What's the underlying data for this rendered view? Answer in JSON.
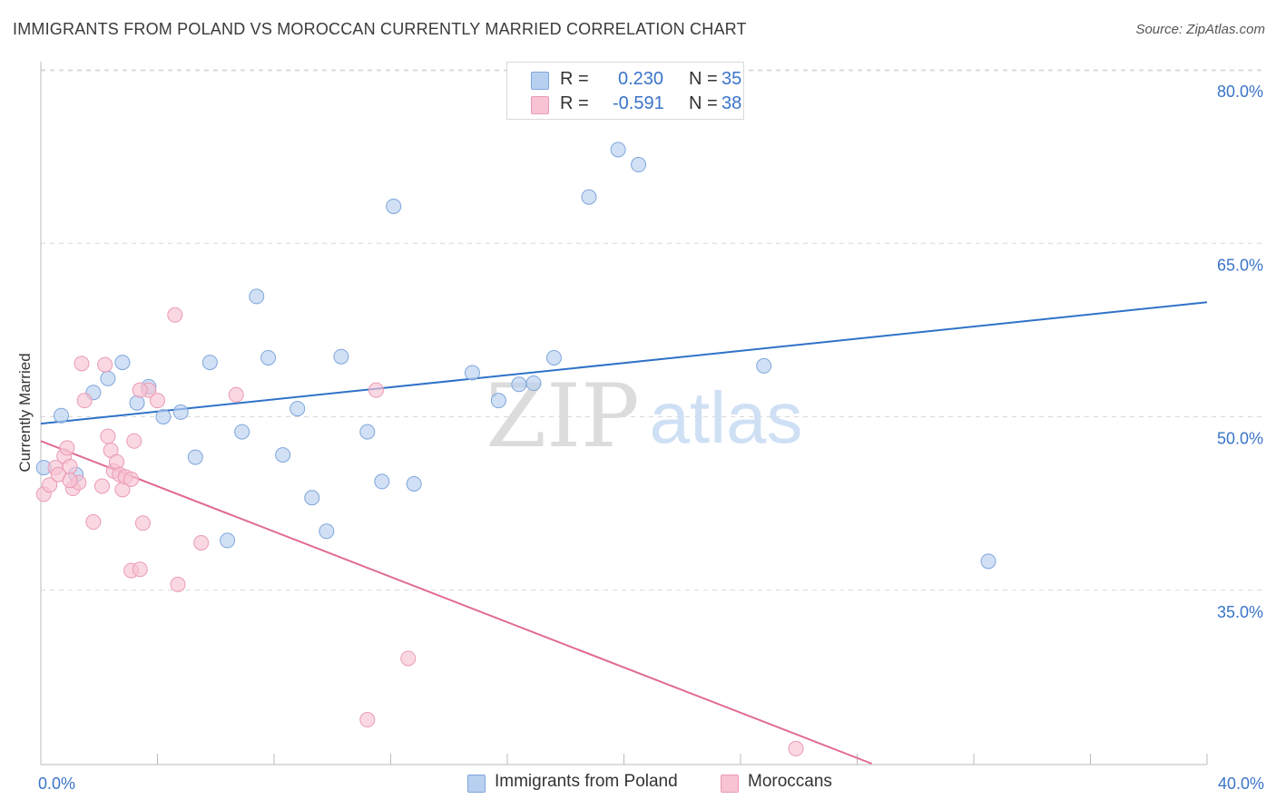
{
  "title": "IMMIGRANTS FROM POLAND VS MOROCCAN CURRENTLY MARRIED CORRELATION CHART",
  "source": "Source: ZipAtlas.com",
  "watermark": {
    "zip": "ZIP",
    "atlas": "atlas"
  },
  "legend_stats": [
    {
      "r_label": "R =",
      "r_value": "0.230",
      "n_label": "N =",
      "n_value": "35"
    },
    {
      "r_label": "R =",
      "r_value": "-0.591",
      "n_label": "N =",
      "n_value": "38"
    }
  ],
  "colors": {
    "blue_fill": "#b8d0f0",
    "blue_stroke": "#7ea6dc",
    "blue_line": "#2f72c8",
    "pink_fill": "#f8c3d3",
    "pink_stroke": "#ea9ab5",
    "pink_line": "#e06b96",
    "grid": "#d9d9d9",
    "tick_text": "#3a74c9"
  },
  "chart_data": {
    "type": "scatter",
    "title": "IMMIGRANTS FROM POLAND VS MOROCCAN CURRENTLY MARRIED CORRELATION CHART",
    "xlabel": "",
    "ylabel": "Currently Married",
    "xlim": [
      0,
      40
    ],
    "ylim": [
      20,
      82
    ],
    "x_tick_labels": [
      {
        "value": 0,
        "label": "0.0%"
      },
      {
        "value": 40,
        "label": "40.0%"
      }
    ],
    "y_tick_labels": [
      {
        "value": 35,
        "label": "35.0%"
      },
      {
        "value": 50,
        "label": "50.0%"
      },
      {
        "value": 65,
        "label": "65.0%"
      },
      {
        "value": 80,
        "label": "80.0%"
      }
    ],
    "x_minor_ticks": [
      0,
      4,
      8,
      12,
      16,
      20,
      24,
      28,
      32,
      36,
      40
    ],
    "grid": true,
    "legend_position": "bottom",
    "series": [
      {
        "name": "Immigrants from Poland",
        "color": "blue",
        "points": [
          [
            0.1,
            45.6
          ],
          [
            0.7,
            50.1
          ],
          [
            1.2,
            45.0
          ],
          [
            1.8,
            52.1
          ],
          [
            2.3,
            53.3
          ],
          [
            2.8,
            54.7
          ],
          [
            3.3,
            51.2
          ],
          [
            3.7,
            52.6
          ],
          [
            4.2,
            50.0
          ],
          [
            4.8,
            50.4
          ],
          [
            5.3,
            46.5
          ],
          [
            5.8,
            54.7
          ],
          [
            6.4,
            39.3
          ],
          [
            6.9,
            48.7
          ],
          [
            7.4,
            60.4
          ],
          [
            7.8,
            55.1
          ],
          [
            8.3,
            46.7
          ],
          [
            8.8,
            50.7
          ],
          [
            9.3,
            43.0
          ],
          [
            9.8,
            40.1
          ],
          [
            10.3,
            55.2
          ],
          [
            11.2,
            48.7
          ],
          [
            11.7,
            44.4
          ],
          [
            12.1,
            68.2
          ],
          [
            12.8,
            44.2
          ],
          [
            14.8,
            53.8
          ],
          [
            15.7,
            51.4
          ],
          [
            16.4,
            52.8
          ],
          [
            16.9,
            52.9
          ],
          [
            17.6,
            55.1
          ],
          [
            18.8,
            69.0
          ],
          [
            19.8,
            73.1
          ],
          [
            20.5,
            71.8
          ],
          [
            24.8,
            54.4
          ],
          [
            32.5,
            37.5
          ]
        ],
        "trend": {
          "x": [
            0,
            40
          ],
          "y": [
            49.4,
            59.9
          ]
        }
      },
      {
        "name": "Moroccans",
        "color": "pink",
        "points": [
          [
            0.1,
            43.3
          ],
          [
            0.3,
            44.1
          ],
          [
            0.5,
            45.6
          ],
          [
            0.6,
            45.0
          ],
          [
            0.8,
            46.6
          ],
          [
            0.9,
            47.3
          ],
          [
            1.0,
            45.7
          ],
          [
            1.1,
            43.8
          ],
          [
            1.3,
            44.3
          ],
          [
            1.4,
            54.6
          ],
          [
            1.5,
            51.4
          ],
          [
            1.8,
            40.9
          ],
          [
            2.1,
            44.0
          ],
          [
            2.2,
            54.5
          ],
          [
            2.3,
            48.3
          ],
          [
            2.4,
            47.1
          ],
          [
            2.5,
            45.3
          ],
          [
            2.6,
            46.1
          ],
          [
            2.7,
            45.0
          ],
          [
            2.8,
            43.7
          ],
          [
            2.9,
            44.8
          ],
          [
            3.1,
            44.6
          ],
          [
            3.1,
            36.7
          ],
          [
            3.2,
            47.9
          ],
          [
            3.4,
            36.8
          ],
          [
            3.5,
            40.8
          ],
          [
            3.7,
            52.3
          ],
          [
            3.4,
            52.3
          ],
          [
            4.0,
            51.4
          ],
          [
            4.6,
            58.8
          ],
          [
            4.7,
            35.5
          ],
          [
            5.5,
            39.1
          ],
          [
            6.7,
            51.9
          ],
          [
            11.2,
            23.8
          ],
          [
            11.5,
            52.3
          ],
          [
            12.6,
            29.1
          ],
          [
            25.9,
            21.3
          ],
          [
            1.0,
            44.5
          ]
        ],
        "trend": {
          "x": [
            0,
            28.5
          ],
          "y": [
            47.9,
            20.0
          ]
        }
      }
    ]
  }
}
